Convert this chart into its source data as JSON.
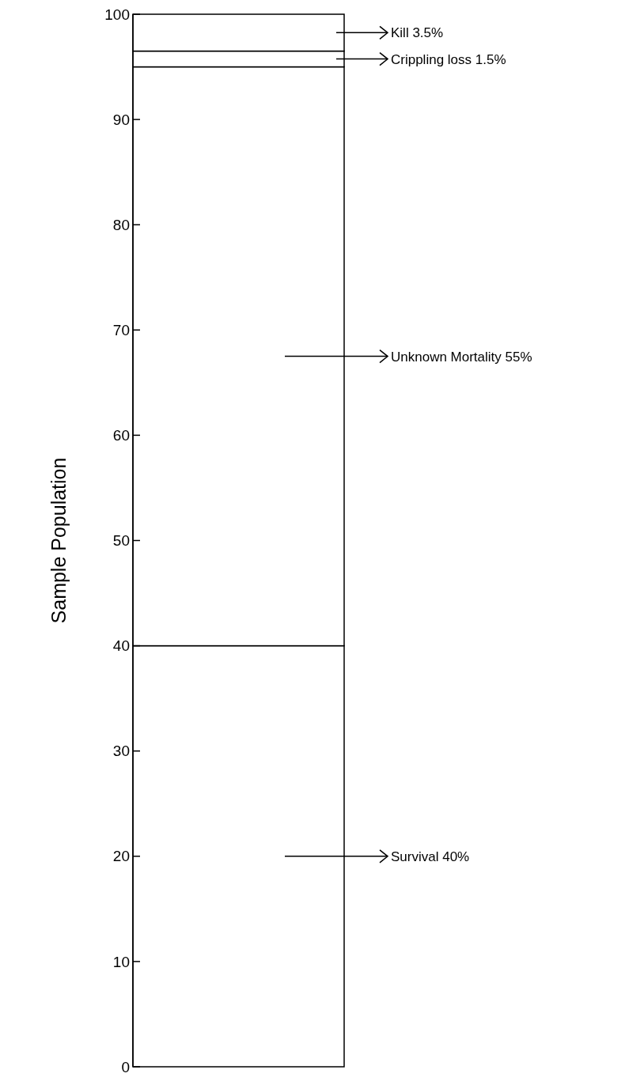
{
  "chart_data": {
    "type": "bar",
    "stacked": true,
    "ylabel": "Sample Population",
    "categories": [
      null
    ],
    "ylim": [
      0,
      100
    ],
    "yticks": [
      0,
      10,
      20,
      30,
      40,
      50,
      60,
      70,
      80,
      90,
      100
    ],
    "series": [
      {
        "color": "#ffffff",
        "values": [
          40
        ]
      },
      {
        "color": "#ffffff",
        "values": [
          55
        ]
      },
      {
        "color": "#ffffff",
        "values": [
          1.5
        ]
      },
      {
        "color": "#ffffff",
        "values": [
          3.5
        ]
      }
    ],
    "annotations": [
      "Kill 3.5%",
      "Crippling loss 1.5%",
      "Unknown Mortality 55%",
      "Survival 40%"
    ]
  }
}
